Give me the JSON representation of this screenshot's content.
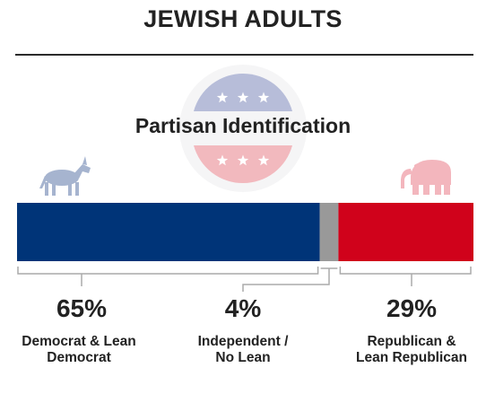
{
  "title": "JEWISH ADULTS",
  "colors": {
    "democrat": "#003478",
    "independent": "#999999",
    "republican": "#d0021b",
    "emblem_blue": "#b7bdd9",
    "emblem_red": "#f2b9be",
    "donkey": "#a6b4cf",
    "elephant": "#f3b6bd"
  },
  "icons": {
    "left": "donkey-icon",
    "right": "elephant-icon",
    "center": "stars-emblem-icon"
  },
  "chart_data": {
    "type": "bar",
    "orientation": "horizontal-stacked",
    "title": "Partisan Identification",
    "series": [
      {
        "key": "democrat",
        "name": "Democrat & Lean Democrat",
        "value": 65,
        "label": "65%",
        "lines": [
          "Democrat & Lean",
          "Democrat"
        ]
      },
      {
        "key": "independent",
        "name": "Independent / No Lean",
        "value": 4,
        "label": "4%",
        "lines": [
          "Independent /",
          "No Lean"
        ]
      },
      {
        "key": "republican",
        "name": "Republican & Lean Republican",
        "value": 29,
        "label": "29%",
        "lines": [
          "Republican &",
          "Lean Republican"
        ]
      }
    ]
  }
}
